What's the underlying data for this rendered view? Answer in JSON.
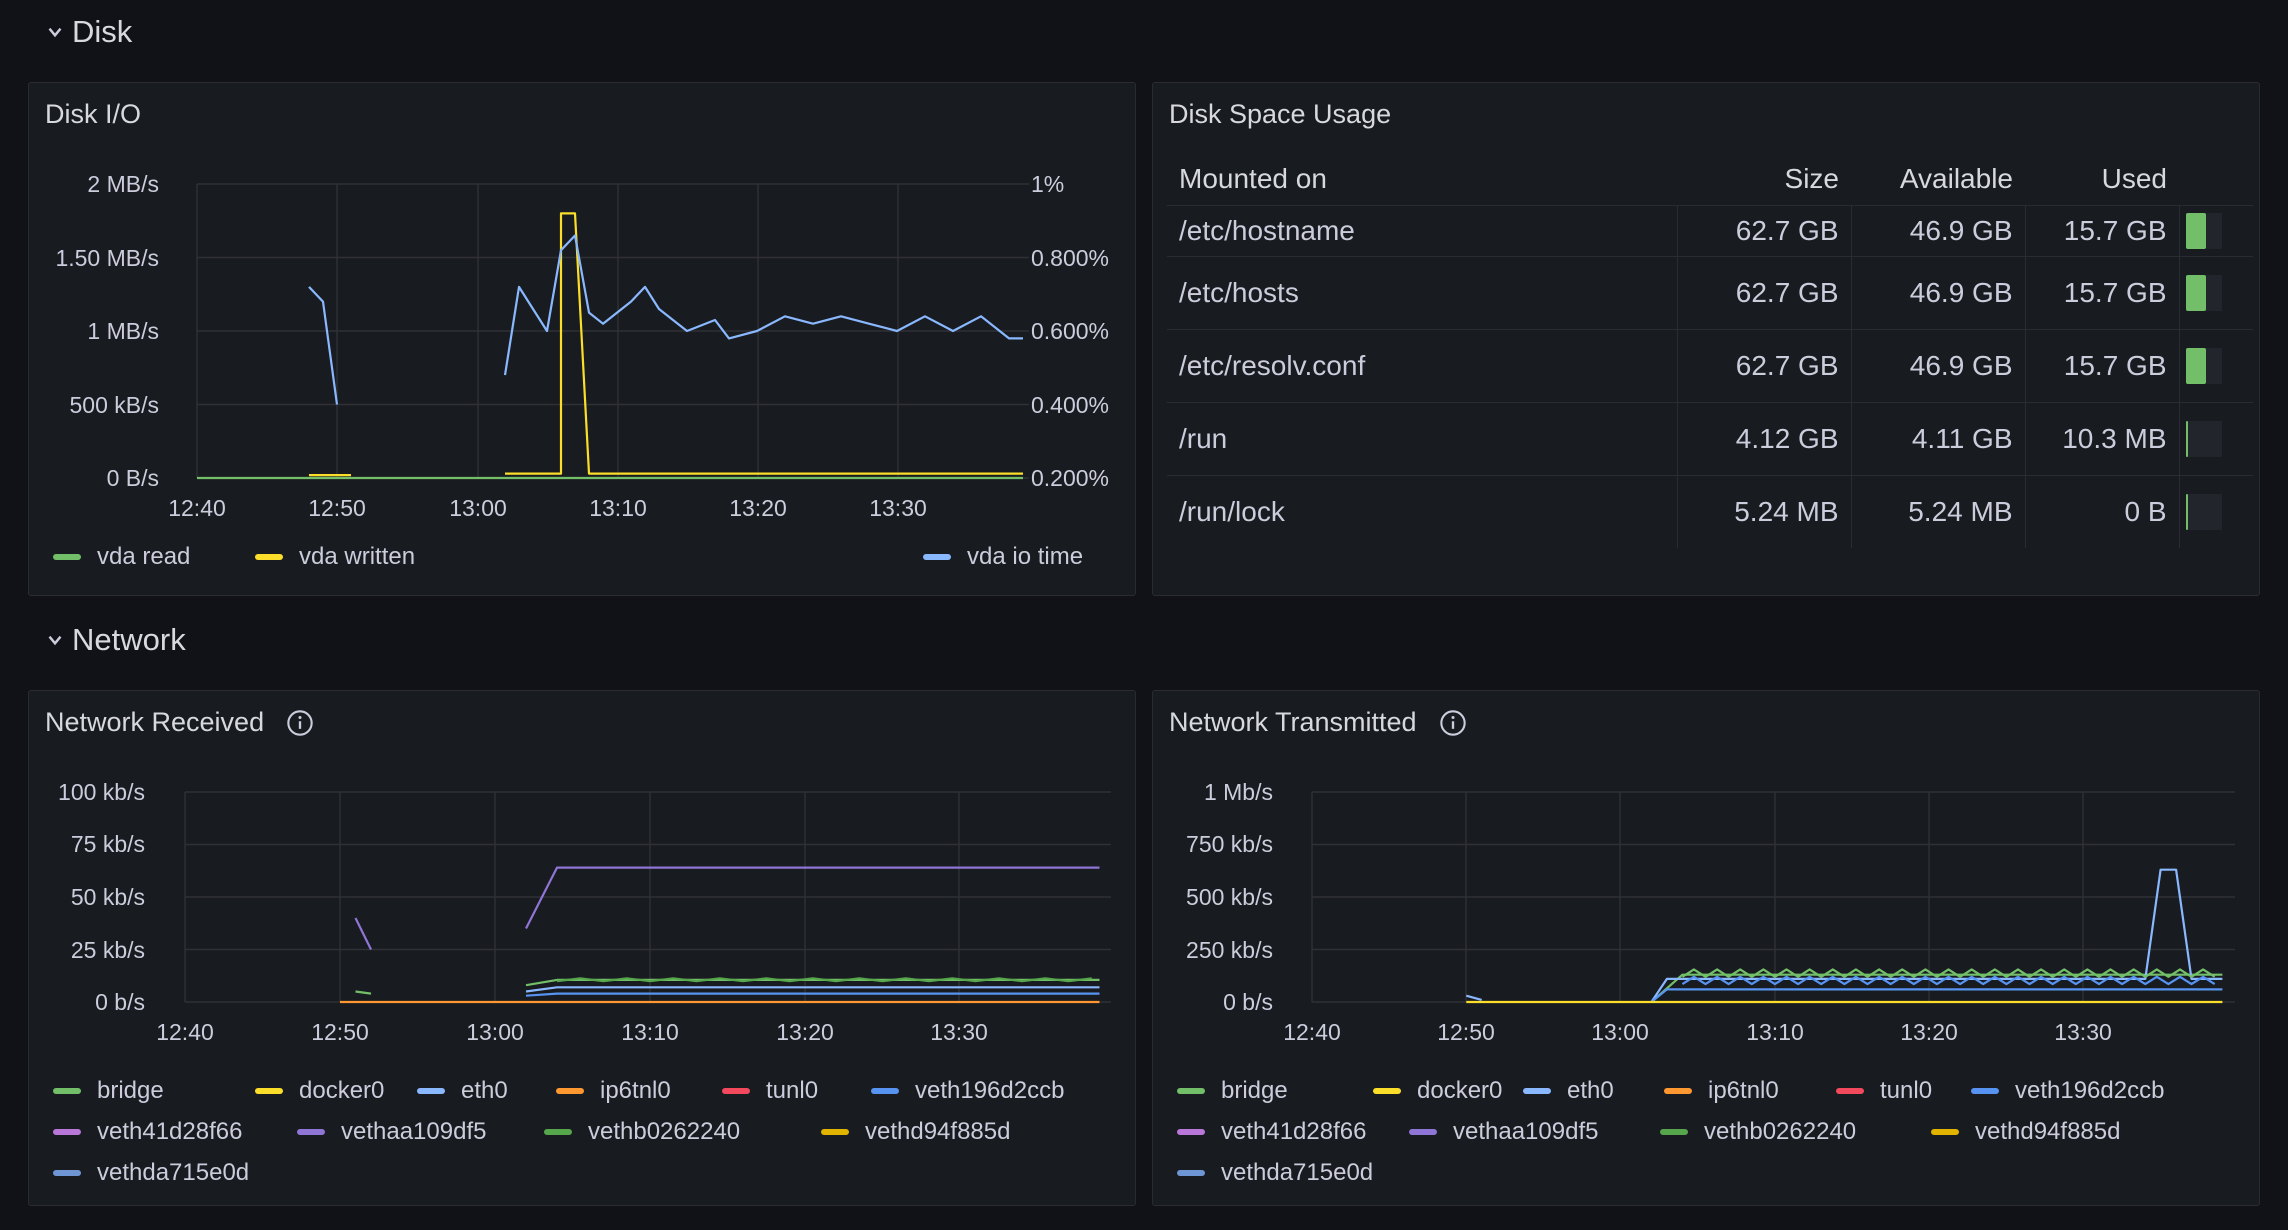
{
  "rows": {
    "disk": {
      "title": "Disk"
    },
    "network": {
      "title": "Network"
    }
  },
  "colors": {
    "vda_read": "#73bf69",
    "vda_written": "#fade2a",
    "vda_io_time": "#8ab8ff",
    "bridge": "#73bf69",
    "docker0": "#fade2a",
    "eth0": "#8ab8ff",
    "ip6tnl0": "#ff9830",
    "tunl0": "#f2495c",
    "veth196d2ccb": "#5794f2",
    "veth41d28f66": "#b877d9",
    "vethaa109df5": "#8f75d6",
    "vethb0262240": "#56a64b",
    "vethd94f885d": "#e0b400",
    "vethda715e0d": "#6e96d4"
  },
  "disk_io": {
    "title": "Disk I/O",
    "y_left_ticks": [
      "2 MB/s",
      "1.50 MB/s",
      "1 MB/s",
      "500 kB/s",
      "0 B/s"
    ],
    "y_right_ticks": [
      "1%",
      "0.800%",
      "0.600%",
      "0.400%",
      "0.200%"
    ],
    "x_ticks": [
      "12:40",
      "12:50",
      "13:00",
      "13:10",
      "13:20",
      "13:30"
    ],
    "legend": [
      "vda read",
      "vda written",
      "vda io time"
    ]
  },
  "disk_space": {
    "title": "Disk Space Usage",
    "columns": [
      "Mounted on",
      "Size",
      "Available",
      "Used"
    ],
    "rows": [
      {
        "mount": "/etc/hostname",
        "size": "62.7 GB",
        "available": "46.9 GB",
        "used": "15.7 GB",
        "used_fraction": 0.25
      },
      {
        "mount": "/etc/hosts",
        "size": "62.7 GB",
        "available": "46.9 GB",
        "used": "15.7 GB",
        "used_fraction": 0.25
      },
      {
        "mount": "/etc/resolv.conf",
        "size": "62.7 GB",
        "available": "46.9 GB",
        "used": "15.7 GB",
        "used_fraction": 0.25
      },
      {
        "mount": "/run",
        "size": "4.12 GB",
        "available": "4.11 GB",
        "used": "10.3 MB",
        "used_fraction": 0.0025
      },
      {
        "mount": "/run/lock",
        "size": "5.24 MB",
        "available": "5.24 MB",
        "used": "0 B",
        "used_fraction": 0
      }
    ]
  },
  "net_rx": {
    "title": "Network Received",
    "y_ticks": [
      "100 kb/s",
      "75 kb/s",
      "50 kb/s",
      "25 kb/s",
      "0 b/s"
    ],
    "x_ticks": [
      "12:40",
      "12:50",
      "13:00",
      "13:10",
      "13:20",
      "13:30"
    ]
  },
  "net_tx": {
    "title": "Network Transmitted",
    "y_ticks": [
      "1 Mb/s",
      "750 kb/s",
      "500 kb/s",
      "250 kb/s",
      "0 b/s"
    ],
    "x_ticks": [
      "12:40",
      "12:50",
      "13:00",
      "13:10",
      "13:20",
      "13:30"
    ]
  },
  "net_legend": [
    "bridge",
    "docker0",
    "eth0",
    "ip6tnl0",
    "tunl0",
    "veth196d2ccb",
    "veth41d28f66",
    "vethaa109df5",
    "vethb0262240",
    "vethd94f885d",
    "vethda715e0d"
  ],
  "chart_data": [
    {
      "type": "line",
      "title": "Disk I/O",
      "x": [
        "12:40",
        "12:50",
        "13:00",
        "13:10",
        "13:20",
        "13:30"
      ],
      "series": [
        {
          "name": "vda read",
          "axis": "left",
          "unit": "MB/s",
          "points": [
            [
              12.6667,
              0
            ],
            [
              13.65,
              0
            ]
          ]
        },
        {
          "name": "vda written",
          "axis": "left",
          "unit": "MB/s",
          "points": [
            [
              12.8,
              0.02
            ],
            [
              12.85,
              0.02
            ],
            [
              13.0333,
              0.03
            ],
            [
              13.1,
              0.03
            ],
            [
              13.1,
              1.8
            ],
            [
              13.1167,
              1.8
            ],
            [
              13.1333,
              0.03
            ],
            [
              13.65,
              0.03
            ]
          ]
        },
        {
          "name": "vda io time",
          "axis": "right",
          "unit": "%",
          "points": [
            [
              12.8,
              0.72
            ],
            [
              12.8167,
              0.68
            ],
            [
              12.8333,
              0.4
            ],
            [
              13.0333,
              0.48
            ],
            [
              13.05,
              0.72
            ],
            [
              13.0667,
              0.66
            ],
            [
              13.0833,
              0.6
            ],
            [
              13.1,
              0.82
            ],
            [
              13.1167,
              0.86
            ],
            [
              13.1333,
              0.65
            ],
            [
              13.15,
              0.62
            ],
            [
              13.1833,
              0.68
            ],
            [
              13.2,
              0.72
            ],
            [
              13.2167,
              0.66
            ],
            [
              13.25,
              0.6
            ],
            [
              13.2833,
              0.63
            ],
            [
              13.3,
              0.58
            ],
            [
              13.3333,
              0.6
            ],
            [
              13.3667,
              0.64
            ],
            [
              13.4,
              0.62
            ],
            [
              13.4333,
              0.64
            ],
            [
              13.4667,
              0.62
            ],
            [
              13.5,
              0.6
            ],
            [
              13.5333,
              0.64
            ],
            [
              13.5667,
              0.6
            ],
            [
              13.6,
              0.64
            ],
            [
              13.6333,
              0.58
            ],
            [
              13.65,
              0.58
            ]
          ]
        }
      ],
      "y_left_range": [
        0,
        2
      ],
      "y_right_range": [
        0.2,
        1
      ]
    },
    {
      "type": "line",
      "title": "Network Received",
      "x": [
        "12:40",
        "12:50",
        "13:00",
        "13:10",
        "13:20",
        "13:30"
      ],
      "ylim": [
        0,
        100
      ],
      "series": [
        {
          "name": "vethaa109df5",
          "points": [
            [
              12.85,
              40
            ],
            [
              12.8667,
              25
            ],
            [
              13.0333,
              35
            ],
            [
              13.0667,
              64
            ],
            [
              13.65,
              64
            ]
          ]
        },
        {
          "name": "bridge",
          "points": [
            [
              12.85,
              5
            ],
            [
              12.8667,
              4
            ],
            [
              13.0333,
              8
            ],
            [
              13.0667,
              10.5
            ],
            [
              13.65,
              10.5
            ]
          ]
        },
        {
          "name": "eth0",
          "points": [
            [
              13.0333,
              5
            ],
            [
              13.0667,
              7
            ],
            [
              13.65,
              7
            ]
          ]
        },
        {
          "name": "veth196d2ccb",
          "points": [
            [
              13.0333,
              3
            ],
            [
              13.0667,
              4
            ],
            [
              13.65,
              4
            ]
          ]
        },
        {
          "name": "ip6tnl0",
          "points": [
            [
              12.8333,
              0
            ],
            [
              13.65,
              0
            ]
          ]
        }
      ]
    },
    {
      "type": "line",
      "title": "Network Transmitted",
      "x": [
        "12:40",
        "12:50",
        "13:00",
        "13:10",
        "13:20",
        "13:30"
      ],
      "ylim": [
        0,
        1000
      ],
      "series": [
        {
          "name": "bridge",
          "points": [
            [
              13.0333,
              0
            ],
            [
              13.0667,
              130
            ],
            [
              13.65,
              130
            ]
          ]
        },
        {
          "name": "eth0",
          "points": [
            [
              13.0333,
              0
            ],
            [
              13.05,
              110
            ],
            [
              13.5667,
              110
            ],
            [
              13.5833,
              630
            ],
            [
              13.6,
              630
            ],
            [
              13.6167,
              110
            ],
            [
              13.65,
              110
            ]
          ]
        },
        {
          "name": "veth196d2ccb",
          "points": [
            [
              13.0333,
              0
            ],
            [
              13.05,
              60
            ],
            [
              13.65,
              60
            ]
          ]
        },
        {
          "name": "docker0",
          "points": [
            [
              12.8333,
              0
            ],
            [
              13.65,
              0
            ]
          ]
        }
      ]
    }
  ]
}
